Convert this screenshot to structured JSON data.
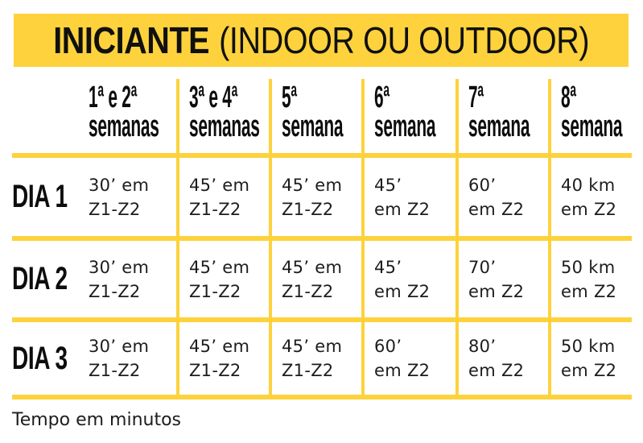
{
  "colors": {
    "accent_yellow": "#FDD23C",
    "text_black": "#141414"
  },
  "banner": {
    "title_bold": "INICIANTE",
    "title_light": "(INDOOR OU OUTDOOR)"
  },
  "footnote": "Tempo em minutos",
  "chart_data": {
    "type": "table",
    "title": "INICIANTE (INDOOR OU OUTDOOR)",
    "note": "Tempo em minutos",
    "column_headers": [
      "1ª e 2ª semanas",
      "3ª e 4ª semanas",
      "5ª semana",
      "6ª semana",
      "7ª semana",
      "8ª semana"
    ],
    "row_headers": [
      "DIA 1",
      "DIA 2",
      "DIA 3"
    ],
    "cells": [
      [
        "30’ em Z1-Z2",
        "45’ em Z1-Z2",
        "45’ em Z1-Z2",
        "45’ em Z2",
        "60’ em Z2",
        "40 km em Z2"
      ],
      [
        "30’ em Z1-Z2",
        "45’ em Z1-Z2",
        "45’ em Z1-Z2",
        "45’ em Z2",
        "70’ em Z2",
        "50 km em Z2"
      ],
      [
        "30’ em Z1-Z2",
        "45’ em Z1-Z2",
        "45’ em Z1-Z2",
        "60’ em Z2",
        "80’ em Z2",
        "50 km em Z2"
      ]
    ]
  },
  "table_display": {
    "headers": [
      {
        "line1": "1ª e 2ª",
        "line2": "semanas"
      },
      {
        "line1": "3ª e 4ª",
        "line2": "semanas"
      },
      {
        "line1": "5ª",
        "line2": "semana"
      },
      {
        "line1": "6ª",
        "line2": "semana"
      },
      {
        "line1": "7ª",
        "line2": "semana"
      },
      {
        "line1": "8ª",
        "line2": "semana"
      }
    ],
    "rows": [
      {
        "label": "DIA 1",
        "cells": [
          {
            "line1": "30’ em",
            "line2": "Z1-Z2"
          },
          {
            "line1": "45’ em",
            "line2": "Z1-Z2"
          },
          {
            "line1": "45’ em",
            "line2": "Z1-Z2"
          },
          {
            "line1": "45’",
            "line2": "em Z2"
          },
          {
            "line1": "60’",
            "line2": "em Z2"
          },
          {
            "line1": "40 km",
            "line2": "em Z2"
          }
        ]
      },
      {
        "label": "DIA 2",
        "cells": [
          {
            "line1": "30’ em",
            "line2": "Z1-Z2"
          },
          {
            "line1": "45’ em",
            "line2": "Z1-Z2"
          },
          {
            "line1": "45’ em",
            "line2": "Z1-Z2"
          },
          {
            "line1": "45’",
            "line2": "em Z2"
          },
          {
            "line1": "70’",
            "line2": "em Z2"
          },
          {
            "line1": "50 km",
            "line2": "em Z2"
          }
        ]
      },
      {
        "label": "DIA 3",
        "cells": [
          {
            "line1": "30’ em",
            "line2": "Z1-Z2"
          },
          {
            "line1": "45’ em",
            "line2": "Z1-Z2"
          },
          {
            "line1": "45’ em",
            "line2": "Z1-Z2"
          },
          {
            "line1": "60’",
            "line2": "em Z2"
          },
          {
            "line1": "80’",
            "line2": "em Z2"
          },
          {
            "line1": "50 km",
            "line2": "em Z2"
          }
        ]
      }
    ]
  }
}
